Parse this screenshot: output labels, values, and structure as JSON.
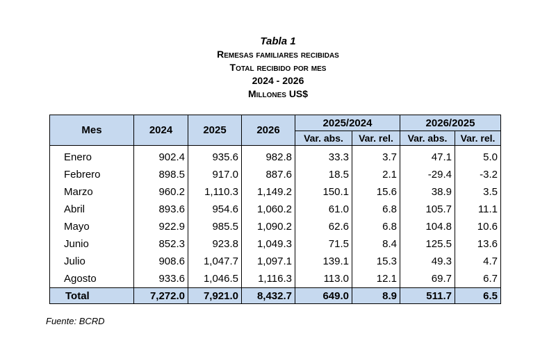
{
  "title": {
    "table_label": "Tabla 1",
    "line1": "Remesas familiares recibidas",
    "line2": "Total recibido por mes",
    "line3": "2024 - 2026",
    "line4": "Millones US$"
  },
  "table": {
    "headers": {
      "mes": "Mes",
      "y2024": "2024",
      "y2025": "2025",
      "y2026": "2026",
      "group1": "2025/2024",
      "group2": "2026/2025",
      "var_abs": "Var. abs.",
      "var_rel": "Var. rel."
    },
    "rows": [
      [
        "Enero",
        "902.4",
        "935.6",
        "982.8",
        "33.3",
        "3.7",
        "47.1",
        "5.0"
      ],
      [
        "Febrero",
        "898.5",
        "917.0",
        "887.6",
        "18.5",
        "2.1",
        "-29.4",
        "-3.2"
      ],
      [
        "Marzo",
        "960.2",
        "1,110.3",
        "1,149.2",
        "150.1",
        "15.6",
        "38.9",
        "3.5"
      ],
      [
        "Abril",
        "893.6",
        "954.6",
        "1,060.2",
        "61.0",
        "6.8",
        "105.7",
        "11.1"
      ],
      [
        "Mayo",
        "922.9",
        "985.5",
        "1,090.2",
        "62.6",
        "6.8",
        "104.8",
        "10.6"
      ],
      [
        "Junio",
        "852.3",
        "923.8",
        "1,049.3",
        "71.5",
        "8.4",
        "125.5",
        "13.6"
      ],
      [
        "Julio",
        "908.6",
        "1,047.7",
        "1,097.1",
        "139.1",
        "15.3",
        "49.3",
        "4.7"
      ],
      [
        "Agosto",
        "933.6",
        "1,046.5",
        "1,116.3",
        "113.0",
        "12.1",
        "69.7",
        "6.7"
      ]
    ],
    "total": [
      "Total",
      "7,272.0",
      "7,921.0",
      "8,432.7",
      "649.0",
      "8.9",
      "511.7",
      "6.5"
    ]
  },
  "source": "Fuente: BCRD"
}
